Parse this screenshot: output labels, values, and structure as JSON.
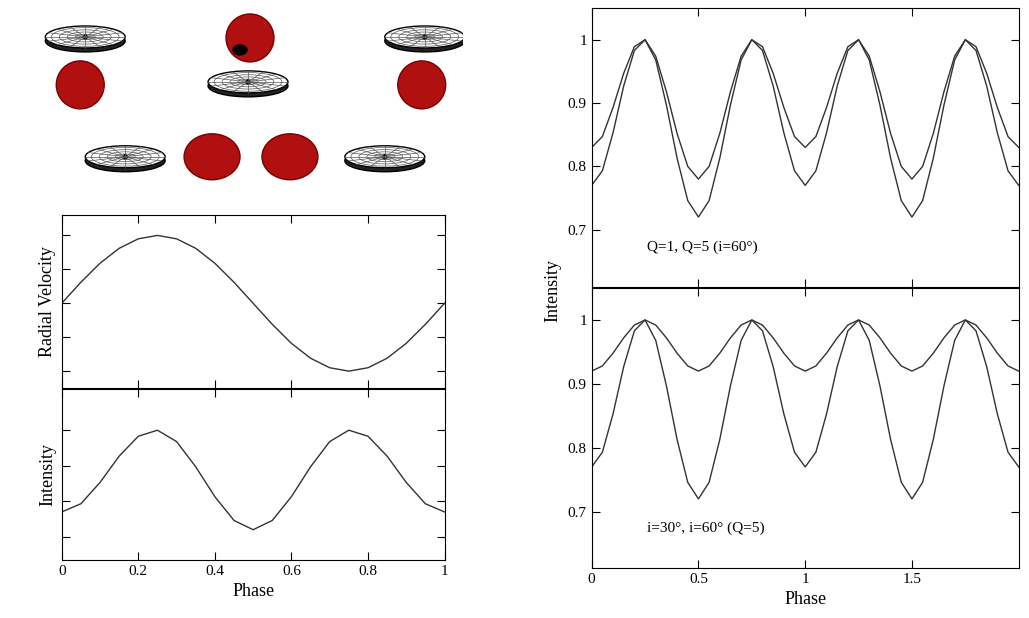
{
  "chart_data": [
    {
      "type": "line",
      "ylabel": "Radial Velocity",
      "tick_labels": false,
      "xlim": [
        0,
        1
      ],
      "xticks": [
        0,
        0.2,
        0.4,
        0.6,
        0.8,
        1
      ],
      "ylim": [
        -1.25,
        1.3
      ],
      "yticks": [
        -1,
        -0.5,
        0,
        0.5,
        1
      ],
      "x": [
        0,
        0.05,
        0.1,
        0.15,
        0.2,
        0.25,
        0.3,
        0.35,
        0.4,
        0.45,
        0.5,
        0.55,
        0.6,
        0.65,
        0.7,
        0.75,
        0.8,
        0.85,
        0.9,
        0.95,
        1
      ],
      "series": [
        {
          "color": "#333333",
          "values": [
            0,
            0.31,
            0.59,
            0.81,
            0.95,
            1,
            0.95,
            0.81,
            0.59,
            0.31,
            0,
            -0.31,
            -0.59,
            -0.81,
            -0.95,
            -1,
            -0.95,
            -0.81,
            -0.59,
            -0.31,
            0
          ]
        }
      ]
    },
    {
      "type": "line",
      "ylabel": "Intensity",
      "xlabel": "Phase",
      "tick_labels": "x",
      "xlim": [
        0,
        1
      ],
      "xticks": [
        0,
        0.2,
        0.4,
        0.6,
        0.8,
        1
      ],
      "ylim": [
        0.635,
        1.115
      ],
      "yticks": [
        0.7,
        0.8,
        0.9,
        1
      ],
      "x": [
        0,
        0.05,
        0.1,
        0.15,
        0.2,
        0.25,
        0.3,
        0.35,
        0.4,
        0.45,
        0.5,
        0.55,
        0.6,
        0.65,
        0.7,
        0.75,
        0.8,
        0.85,
        0.9,
        0.95,
        1
      ],
      "series": [
        {
          "color": "#333333",
          "values": [
            0.77,
            0.793,
            0.853,
            0.927,
            0.983,
            1,
            0.968,
            0.897,
            0.813,
            0.746,
            0.72,
            0.746,
            0.813,
            0.897,
            0.968,
            1,
            0.983,
            0.927,
            0.853,
            0.793,
            0.77
          ]
        }
      ]
    },
    {
      "type": "line",
      "ylabel": "Intensity",
      "annotation": "Q=1, Q=5 (i=60°)",
      "tick_labels": "y",
      "xlim": [
        0,
        2
      ],
      "xticks": [
        0,
        0.5,
        1,
        1.5
      ],
      "ylim": [
        0.61,
        1.05
      ],
      "yticks": [
        0.7,
        0.8,
        0.9,
        1
      ],
      "x": [
        0,
        0.05,
        0.1,
        0.15,
        0.2,
        0.25,
        0.3,
        0.35,
        0.4,
        0.45,
        0.5,
        0.55,
        0.6,
        0.65,
        0.7,
        0.75,
        0.8,
        0.85,
        0.9,
        0.95,
        1,
        1.05,
        1.1,
        1.15,
        1.2,
        1.25,
        1.3,
        1.35,
        1.4,
        1.45,
        1.5,
        1.55,
        1.6,
        1.65,
        1.7,
        1.75,
        1.8,
        1.85,
        1.9,
        1.95,
        2
      ],
      "series": [
        {
          "color": "#333333",
          "values": [
            0.83,
            0.847,
            0.893,
            0.947,
            0.989,
            1,
            0.974,
            0.918,
            0.852,
            0.8,
            0.78,
            0.8,
            0.852,
            0.918,
            0.974,
            1,
            0.989,
            0.947,
            0.893,
            0.847,
            0.83,
            0.847,
            0.893,
            0.947,
            0.989,
            1,
            0.974,
            0.918,
            0.852,
            0.8,
            0.78,
            0.8,
            0.852,
            0.918,
            0.974,
            1,
            0.989,
            0.947,
            0.893,
            0.847,
            0.83
          ]
        },
        {
          "color": "#333333",
          "values": [
            0.77,
            0.793,
            0.853,
            0.927,
            0.983,
            1,
            0.968,
            0.897,
            0.813,
            0.746,
            0.72,
            0.746,
            0.813,
            0.897,
            0.968,
            1,
            0.983,
            0.927,
            0.853,
            0.793,
            0.77,
            0.793,
            0.853,
            0.927,
            0.983,
            1,
            0.968,
            0.897,
            0.813,
            0.746,
            0.72,
            0.746,
            0.813,
            0.897,
            0.968,
            1,
            0.983,
            0.927,
            0.853,
            0.793,
            0.77
          ]
        }
      ]
    },
    {
      "type": "line",
      "xlabel": "Phase",
      "annotation": "i=30°, i=60° (Q=5)",
      "xlim": [
        0,
        2
      ],
      "xticks": [
        0,
        0.5,
        1,
        1.5
      ],
      "ylim": [
        0.612,
        1.05
      ],
      "yticks": [
        0.7,
        0.8,
        0.9,
        1
      ],
      "x": [
        0,
        0.05,
        0.1,
        0.15,
        0.2,
        0.25,
        0.3,
        0.35,
        0.4,
        0.45,
        0.5,
        0.55,
        0.6,
        0.65,
        0.7,
        0.75,
        0.8,
        0.85,
        0.9,
        0.95,
        1,
        1.05,
        1.1,
        1.15,
        1.2,
        1.25,
        1.3,
        1.35,
        1.4,
        1.45,
        1.5,
        1.55,
        1.6,
        1.65,
        1.7,
        1.75,
        1.8,
        1.85,
        1.9,
        1.95,
        2
      ],
      "series": [
        {
          "color": "#333333",
          "values": [
            0.92,
            0.928,
            0.948,
            0.972,
            0.992,
            1,
            0.992,
            0.972,
            0.948,
            0.928,
            0.92,
            0.928,
            0.948,
            0.972,
            0.992,
            1,
            0.992,
            0.972,
            0.948,
            0.928,
            0.92,
            0.928,
            0.948,
            0.972,
            0.992,
            1,
            0.992,
            0.972,
            0.948,
            0.928,
            0.92,
            0.928,
            0.948,
            0.972,
            0.992,
            1,
            0.992,
            0.972,
            0.948,
            0.928,
            0.92
          ]
        },
        {
          "color": "#333333",
          "values": [
            0.77,
            0.793,
            0.853,
            0.927,
            0.983,
            1,
            0.968,
            0.897,
            0.813,
            0.746,
            0.72,
            0.746,
            0.813,
            0.897,
            0.968,
            1,
            0.983,
            0.927,
            0.853,
            0.793,
            0.77,
            0.793,
            0.853,
            0.927,
            0.983,
            1,
            0.968,
            0.897,
            0.813,
            0.746,
            0.72,
            0.746,
            0.813,
            0.897,
            0.968,
            1,
            0.983,
            0.927,
            0.853,
            0.793,
            0.77
          ]
        }
      ]
    }
  ]
}
